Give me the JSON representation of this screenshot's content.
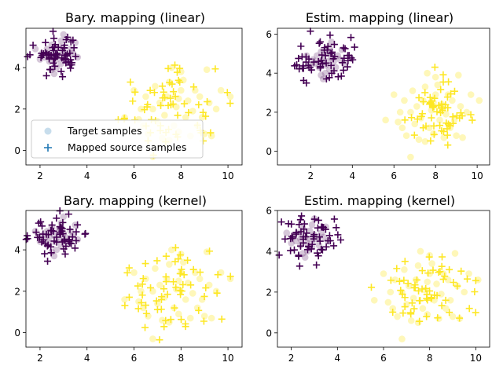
{
  "chart_data": [
    {
      "type": "scatter",
      "title": "Bary. mapping (linear)",
      "xlim": [
        1.4,
        10.6
      ],
      "ylim": [
        -0.7,
        5.9
      ],
      "xticks": [
        2,
        4,
        6,
        8,
        10
      ],
      "yticks": [
        0,
        2,
        4
      ],
      "xtick_labels": [
        "2",
        "4",
        "6",
        "8",
        "10"
      ],
      "ytick_labels": [
        "0",
        "2",
        "4"
      ],
      "legend": {
        "placement": "lower-left",
        "entries": [
          {
            "label": "Target samples",
            "marker": "circle"
          },
          {
            "label": "Mapped source samples",
            "marker": "plus"
          }
        ]
      },
      "mapped_style": "tight",
      "jitter": [
        0.25,
        0.24,
        0.95,
        0.85
      ],
      "mapped_seed": 11
    },
    {
      "type": "scatter",
      "title": "Estim. mapping (linear)",
      "xlim": [
        0.4,
        10.6
      ],
      "ylim": [
        -0.7,
        6.3
      ],
      "xticks": [
        2,
        4,
        6,
        8,
        10
      ],
      "yticks": [
        0,
        2,
        4,
        6
      ],
      "xtick_labels": [
        "2",
        "4",
        "6",
        "8",
        "10"
      ],
      "ytick_labels": [
        "0",
        "2",
        "4",
        "6"
      ],
      "mapped_style": "wide",
      "jitter": [
        0.6,
        0.5,
        0.7,
        0.75
      ],
      "mapped_seed": 23
    },
    {
      "type": "scatter",
      "title": "Bary. mapping (kernel)",
      "xlim": [
        1.4,
        10.6
      ],
      "ylim": [
        -0.7,
        5.9
      ],
      "xticks": [
        2,
        4,
        6,
        8,
        10
      ],
      "yticks": [
        0,
        2,
        4
      ],
      "xtick_labels": [
        "2",
        "4",
        "6",
        "8",
        "10"
      ],
      "ytick_labels": [
        "0",
        "2",
        "4"
      ],
      "mapped_style": "tight",
      "jitter": [
        0.25,
        0.24,
        0.95,
        0.85
      ],
      "mapped_seed": 37
    },
    {
      "type": "scatter",
      "title": "Estim. mapping (kernel)",
      "xlim": [
        1.4,
        10.6
      ],
      "ylim": [
        -0.7,
        6.0
      ],
      "xticks": [
        2,
        4,
        6,
        8,
        10
      ],
      "yticks": [
        0,
        2,
        4,
        6
      ],
      "xtick_labels": [
        "2",
        "4",
        "6",
        "8",
        "10"
      ],
      "ytick_labels": [
        "0",
        "2",
        "4",
        "6"
      ],
      "mapped_style": "wide",
      "jitter": [
        0.5,
        0.4,
        1.0,
        0.8
      ],
      "mapped_seed": 51
    }
  ],
  "colors": {
    "class_a": "#440154",
    "class_b": "#fde725",
    "legend_marker": "#1f77b4"
  },
  "target_samples": {
    "class_a": [
      [
        2.3,
        4.9
      ],
      [
        2.5,
        5.1
      ],
      [
        2.6,
        4.7
      ],
      [
        2.8,
        5.0
      ],
      [
        3.0,
        4.8
      ],
      [
        2.2,
        4.5
      ],
      [
        2.4,
        4.3
      ],
      [
        2.7,
        4.4
      ],
      [
        3.1,
        4.6
      ],
      [
        3.3,
        4.9
      ],
      [
        2.9,
        5.3
      ],
      [
        3.0,
        5.6
      ],
      [
        2.5,
        3.9
      ],
      [
        2.6,
        3.7
      ],
      [
        1.8,
        4.9
      ],
      [
        2.0,
        4.4
      ],
      [
        2.1,
        4.7
      ],
      [
        3.4,
        4.7
      ],
      [
        3.6,
        4.5
      ],
      [
        3.5,
        5.2
      ],
      [
        2.7,
        4.0
      ],
      [
        2.9,
        4.2
      ],
      [
        3.2,
        4.3
      ],
      [
        2.4,
        4.6
      ],
      [
        2.8,
        4.6
      ]
    ],
    "class_b": [
      [
        5.6,
        1.6
      ],
      [
        6.0,
        2.9
      ],
      [
        6.2,
        1.5
      ],
      [
        6.3,
        2.0
      ],
      [
        6.5,
        2.6
      ],
      [
        6.6,
        0.8
      ],
      [
        6.8,
        2.0
      ],
      [
        6.9,
        3.1
      ],
      [
        7.0,
        1.4
      ],
      [
        7.1,
        2.3
      ],
      [
        7.2,
        0.6
      ],
      [
        7.3,
        1.7
      ],
      [
        7.4,
        2.6
      ],
      [
        7.5,
        3.3
      ],
      [
        7.6,
        4.0
      ],
      [
        7.7,
        1.2
      ],
      [
        7.8,
        2.1
      ],
      [
        7.9,
        0.9
      ],
      [
        8.0,
        2.9
      ],
      [
        8.1,
        3.4
      ],
      [
        8.2,
        1.6
      ],
      [
        8.3,
        2.4
      ],
      [
        8.4,
        0.7
      ],
      [
        8.5,
        1.9
      ],
      [
        8.6,
        2.9
      ],
      [
        8.7,
        1.2
      ],
      [
        8.8,
        2.6
      ],
      [
        8.9,
        1.6
      ],
      [
        9.0,
        0.8
      ],
      [
        9.1,
        3.9
      ],
      [
        9.2,
        2.3
      ],
      [
        9.3,
        0.7
      ],
      [
        9.5,
        2.0
      ],
      [
        9.7,
        2.9
      ],
      [
        10.1,
        2.6
      ],
      [
        6.8,
        -0.3
      ],
      [
        7.5,
        0.5
      ],
      [
        8.0,
        3.8
      ],
      [
        6.4,
        1.2
      ],
      [
        7.9,
        2.5
      ]
    ]
  }
}
